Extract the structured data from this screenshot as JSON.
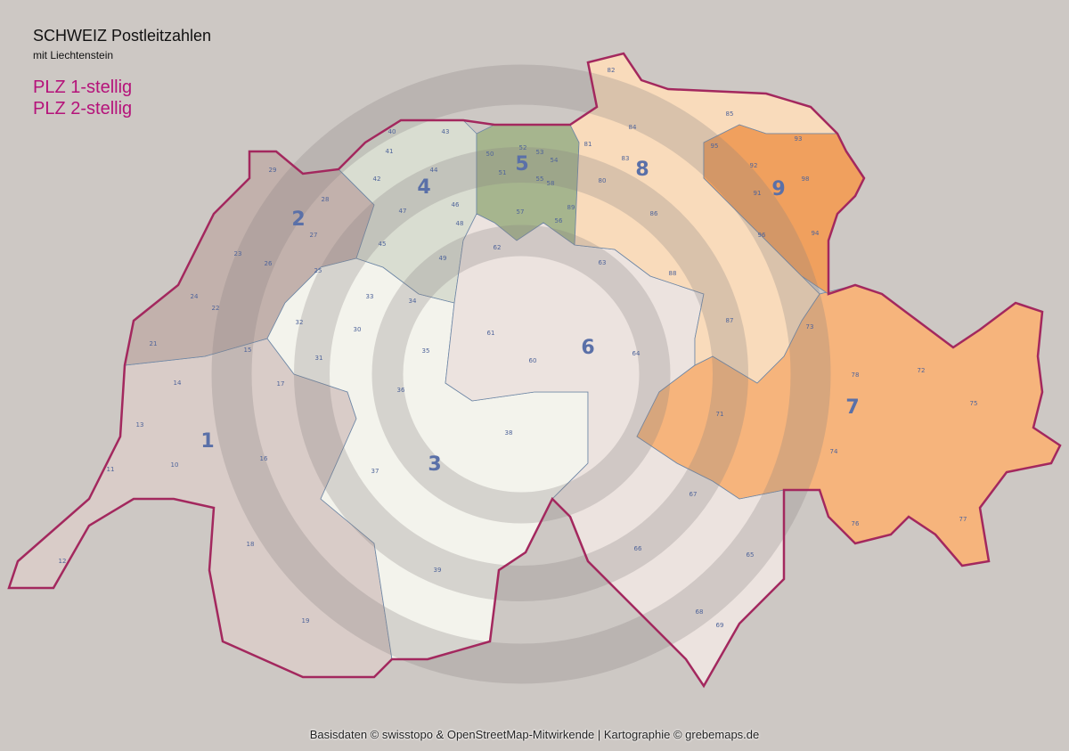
{
  "header": {
    "title": "SCHWEIZ Postleitzahlen",
    "subtitle": "mit Liechtenstein",
    "legend": [
      "PLZ 1-stellig",
      "PLZ 2-stellig"
    ]
  },
  "footer": {
    "credits": "Basisdaten © swisstopo & OpenStreetMap-Mitwirkende  |  Kartographie © grebemaps.de"
  },
  "colors": {
    "background": "#cdc8c4",
    "border": "#a3285e",
    "legend_text": "#b5127a",
    "region_1": "#d9ccc8",
    "region_2": "#c2b1ac",
    "region_3": "#f3f3ec",
    "region_4": "#d9ddd1",
    "region_5": "#a6b58e",
    "region_6": "#ece3df",
    "region_7": "#f6b47c",
    "region_8": "#f9dbbb",
    "region_9": "#f0a05e"
  },
  "map": {
    "regions_1digit": [
      "1",
      "2",
      "3",
      "4",
      "5",
      "6",
      "7",
      "8",
      "9"
    ],
    "regions_2digit": [
      "10",
      "11",
      "12",
      "13",
      "14",
      "15",
      "16",
      "17",
      "18",
      "19",
      "21",
      "22",
      "23",
      "24",
      "25",
      "26",
      "27",
      "28",
      "29",
      "30",
      "31",
      "32",
      "33",
      "34",
      "35",
      "36",
      "37",
      "38",
      "39",
      "40",
      "41",
      "42",
      "43",
      "44",
      "45",
      "46",
      "47",
      "48",
      "49",
      "50",
      "51",
      "52",
      "53",
      "54",
      "55",
      "56",
      "57",
      "58",
      "60",
      "61",
      "62",
      "63",
      "64",
      "65",
      "66",
      "67",
      "68",
      "69",
      "71",
      "72",
      "73",
      "74",
      "75",
      "76",
      "77",
      "78",
      "80",
      "81",
      "82",
      "83",
      "84",
      "85",
      "86",
      "87",
      "88",
      "89",
      "91",
      "92",
      "93",
      "94",
      "95",
      "96",
      "98"
    ]
  }
}
